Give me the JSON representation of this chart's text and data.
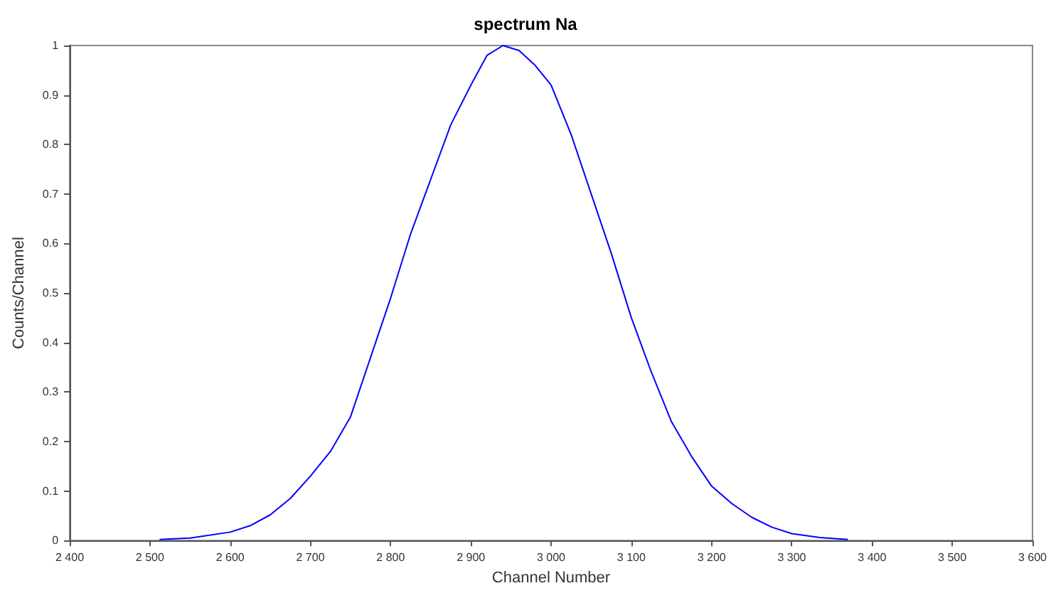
{
  "chart_data": {
    "type": "line",
    "title": "spectrum Na",
    "xlabel": "Channel Number",
    "ylabel": "Counts/Channel",
    "x": [
      2512,
      2550,
      2600,
      2625,
      2650,
      2675,
      2700,
      2725,
      2750,
      2775,
      2800,
      2825,
      2850,
      2875,
      2900,
      2920,
      2940,
      2960,
      2980,
      3000,
      3025,
      3050,
      3075,
      3100,
      3125,
      3150,
      3175,
      3200,
      3225,
      3250,
      3275,
      3300,
      3335,
      3370
    ],
    "series": [
      {
        "color": "#0000ff",
        "values": [
          0.002,
          0.005,
          0.017,
          0.03,
          0.052,
          0.085,
          0.13,
          0.18,
          0.25,
          0.37,
          0.49,
          0.62,
          0.73,
          0.84,
          0.92,
          0.98,
          1.0,
          0.99,
          0.96,
          0.92,
          0.82,
          0.7,
          0.58,
          0.45,
          0.34,
          0.24,
          0.17,
          0.11,
          0.075,
          0.047,
          0.027,
          0.014,
          0.006,
          0.002
        ]
      }
    ],
    "xlim": [
      2400,
      3600
    ],
    "xticks": [
      {
        "value": 2400,
        "label": "2 400"
      },
      {
        "value": 2500,
        "label": "2 500"
      },
      {
        "value": 2600,
        "label": "2 600"
      },
      {
        "value": 2700,
        "label": "2 700"
      },
      {
        "value": 2800,
        "label": "2 800"
      },
      {
        "value": 2900,
        "label": "2 900"
      },
      {
        "value": 3000,
        "label": "3 000"
      },
      {
        "value": 3100,
        "label": "3 100"
      },
      {
        "value": 3200,
        "label": "3 200"
      },
      {
        "value": 3300,
        "label": "3 300"
      },
      {
        "value": 3400,
        "label": "3 400"
      },
      {
        "value": 3500,
        "label": "3 500"
      },
      {
        "value": 3600,
        "label": "3 600"
      }
    ],
    "ylim": [
      0,
      1
    ],
    "yticks": [
      0,
      0.1,
      0.2,
      0.3,
      0.4,
      0.5,
      0.6,
      0.7,
      0.8,
      0.9,
      1
    ],
    "marker": "none",
    "line_style": "solid"
  }
}
